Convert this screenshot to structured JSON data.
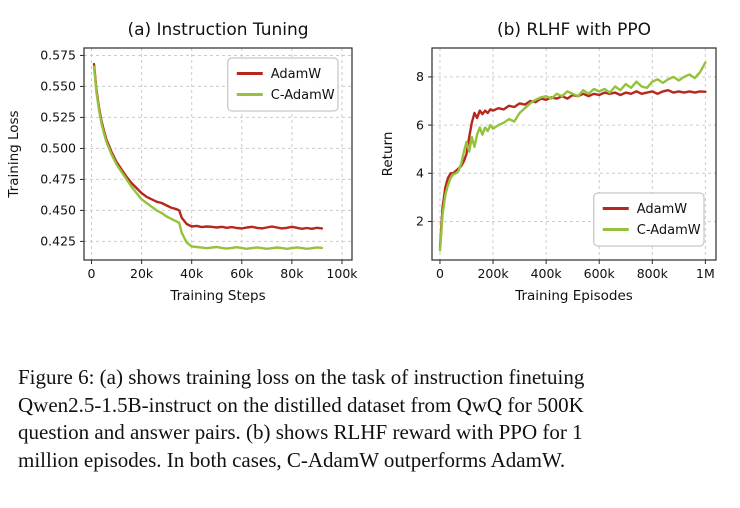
{
  "figure": {
    "caption_lines": [
      "Figure 6: (a) shows training loss on the task of instruction finetuing",
      "Qwen2.5-1.5B-instruct on the distilled dataset from QwQ for 500K",
      "question and answer pairs. (b) shows RLHF reward with PPO for 1",
      "million episodes. In both cases, C-AdamW outperforms AdamW."
    ]
  },
  "colors": {
    "adamw": "#b6281e",
    "c_adamw": "#95c23d",
    "grid": "#cccccc",
    "spine": "#2b2b2b",
    "text": "#111111",
    "legend_border": "#b9b9b9"
  },
  "chart_data": [
    {
      "type": "line",
      "title": "(a) Instruction Tuning",
      "xlabel": "Training Steps",
      "ylabel": "Training Loss",
      "xlim": [
        -3,
        104
      ],
      "ylim": [
        0.41,
        0.581
      ],
      "grid": true,
      "xticks": {
        "values": [
          0,
          20,
          40,
          60,
          80,
          100
        ],
        "labels": [
          "0",
          "20k",
          "40k",
          "60k",
          "80k",
          "100k"
        ]
      },
      "yticks": {
        "values": [
          0.425,
          0.45,
          0.475,
          0.5,
          0.525,
          0.55,
          0.575
        ],
        "labels": [
          "0.425",
          "0.450",
          "0.475",
          "0.500",
          "0.525",
          "0.550",
          "0.575"
        ]
      },
      "legend": {
        "position": "upper-right",
        "entries": [
          "AdamW",
          "C-AdamW"
        ]
      },
      "series": [
        {
          "name": "AdamW",
          "color": "#b6281e",
          "x": [
            1,
            2,
            3,
            4,
            5,
            6,
            8,
            10,
            12,
            14,
            16,
            18,
            20,
            22,
            24,
            26,
            28,
            30,
            32,
            34,
            35,
            36,
            38,
            40,
            42,
            44,
            46,
            48,
            50,
            52,
            54,
            56,
            58,
            60,
            62,
            64,
            66,
            68,
            70,
            72,
            74,
            76,
            78,
            80,
            82,
            84,
            86,
            88,
            90,
            92
          ],
          "y": [
            0.568,
            0.547,
            0.533,
            0.522,
            0.514,
            0.507,
            0.497,
            0.489,
            0.483,
            0.477,
            0.472,
            0.468,
            0.464,
            0.461,
            0.459,
            0.457,
            0.456,
            0.454,
            0.452,
            0.451,
            0.45,
            0.444,
            0.439,
            0.437,
            0.4375,
            0.4365,
            0.437,
            0.4368,
            0.4362,
            0.4368,
            0.436,
            0.4365,
            0.4358,
            0.4355,
            0.4362,
            0.4368,
            0.436,
            0.4355,
            0.4362,
            0.437,
            0.4362,
            0.4355,
            0.436,
            0.4368,
            0.436,
            0.4352,
            0.4358,
            0.4352,
            0.436,
            0.4355
          ]
        },
        {
          "name": "C-AdamW",
          "color": "#95c23d",
          "x": [
            1,
            2,
            3,
            4,
            5,
            6,
            8,
            10,
            12,
            14,
            16,
            18,
            20,
            22,
            24,
            26,
            28,
            30,
            32,
            34,
            35,
            36,
            38,
            40,
            42,
            44,
            46,
            48,
            50,
            52,
            54,
            56,
            58,
            60,
            62,
            64,
            66,
            68,
            70,
            72,
            74,
            76,
            78,
            80,
            82,
            84,
            86,
            88,
            90,
            92
          ],
          "y": [
            0.566,
            0.545,
            0.531,
            0.52,
            0.512,
            0.505,
            0.495,
            0.487,
            0.481,
            0.475,
            0.469,
            0.464,
            0.459,
            0.456,
            0.453,
            0.45,
            0.448,
            0.445,
            0.443,
            0.441,
            0.44,
            0.432,
            0.424,
            0.421,
            0.4205,
            0.42,
            0.4195,
            0.42,
            0.4205,
            0.4198,
            0.4192,
            0.4198,
            0.4203,
            0.4196,
            0.419,
            0.4196,
            0.4202,
            0.4196,
            0.419,
            0.4195,
            0.4201,
            0.4196,
            0.419,
            0.4196,
            0.4202,
            0.4196,
            0.419,
            0.4195,
            0.4202,
            0.4198
          ]
        }
      ]
    },
    {
      "type": "line",
      "title": "(b) RLHF with PPO",
      "xlabel": "Training Episodes",
      "ylabel": "Return",
      "xlim": [
        -30,
        1040
      ],
      "ylim": [
        0.4,
        9.2
      ],
      "grid": true,
      "xticks": {
        "values": [
          0,
          200,
          400,
          600,
          800,
          1000
        ],
        "labels": [
          "0",
          "200k",
          "400k",
          "600k",
          "800k",
          "1M"
        ]
      },
      "yticks": {
        "values": [
          2,
          4,
          6,
          8
        ],
        "labels": [
          "2",
          "4",
          "6",
          "8"
        ]
      },
      "legend": {
        "position": "lower-right",
        "entries": [
          "AdamW",
          "C-AdamW"
        ]
      },
      "series": [
        {
          "name": "AdamW",
          "color": "#b6281e",
          "x": [
            0,
            10,
            20,
            30,
            40,
            50,
            60,
            70,
            80,
            90,
            100,
            110,
            120,
            130,
            140,
            150,
            160,
            170,
            180,
            190,
            200,
            220,
            240,
            260,
            280,
            300,
            320,
            340,
            360,
            380,
            400,
            420,
            440,
            460,
            480,
            500,
            520,
            540,
            560,
            580,
            600,
            620,
            640,
            660,
            680,
            700,
            720,
            740,
            760,
            780,
            800,
            820,
            840,
            860,
            880,
            900,
            920,
            940,
            960,
            980,
            1000
          ],
          "y": [
            0.9,
            2.6,
            3.4,
            3.8,
            4.0,
            4.0,
            4.1,
            4.2,
            4.3,
            4.5,
            4.8,
            5.5,
            6.1,
            6.5,
            6.3,
            6.6,
            6.45,
            6.6,
            6.5,
            6.65,
            6.6,
            6.7,
            6.65,
            6.8,
            6.75,
            6.9,
            6.85,
            7.0,
            6.95,
            7.1,
            7.05,
            7.15,
            7.1,
            7.2,
            7.1,
            7.25,
            7.2,
            7.3,
            7.2,
            7.3,
            7.25,
            7.35,
            7.3,
            7.35,
            7.25,
            7.35,
            7.3,
            7.4,
            7.3,
            7.35,
            7.4,
            7.3,
            7.4,
            7.45,
            7.35,
            7.4,
            7.35,
            7.4,
            7.35,
            7.4,
            7.38
          ]
        },
        {
          "name": "C-AdamW",
          "color": "#95c23d",
          "x": [
            0,
            10,
            20,
            30,
            40,
            50,
            60,
            70,
            80,
            90,
            100,
            110,
            120,
            130,
            140,
            150,
            160,
            170,
            180,
            190,
            200,
            220,
            240,
            260,
            280,
            300,
            320,
            340,
            360,
            380,
            400,
            420,
            440,
            460,
            480,
            500,
            520,
            540,
            560,
            580,
            600,
            620,
            640,
            660,
            680,
            700,
            720,
            740,
            760,
            780,
            800,
            820,
            840,
            860,
            880,
            900,
            920,
            940,
            960,
            980,
            1000
          ],
          "y": [
            0.8,
            2.3,
            3.1,
            3.5,
            3.8,
            3.95,
            4.0,
            4.1,
            4.4,
            4.9,
            5.3,
            4.9,
            5.5,
            5.1,
            5.6,
            5.9,
            5.6,
            5.9,
            5.75,
            6.0,
            5.85,
            6.0,
            6.1,
            6.25,
            6.15,
            6.5,
            6.7,
            6.9,
            7.05,
            7.15,
            7.2,
            7.1,
            7.3,
            7.2,
            7.4,
            7.3,
            7.2,
            7.45,
            7.3,
            7.5,
            7.4,
            7.5,
            7.35,
            7.6,
            7.45,
            7.7,
            7.55,
            7.8,
            7.6,
            7.55,
            7.8,
            7.9,
            7.75,
            7.9,
            8.0,
            7.85,
            8.0,
            8.1,
            7.95,
            8.2,
            8.6
          ]
        }
      ]
    }
  ]
}
